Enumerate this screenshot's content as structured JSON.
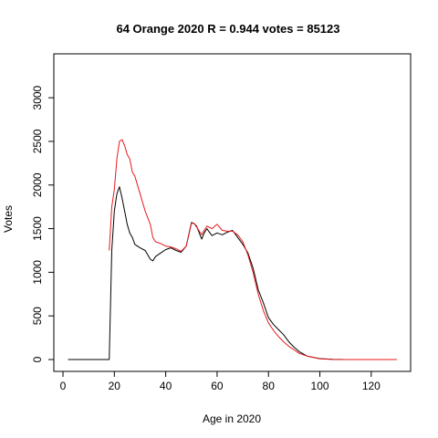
{
  "chart_data": {
    "type": "line",
    "title": "64 Orange 2020 R = 0.944 votes = 85123",
    "xlabel": "Age in 2020",
    "ylabel": "Votes",
    "xlim": [
      0,
      130
    ],
    "ylim": [
      0,
      3200
    ],
    "xticks": [
      0,
      20,
      40,
      60,
      80,
      100,
      120
    ],
    "yticks": [
      0,
      500,
      1000,
      1500,
      2000,
      2500,
      3000
    ],
    "grid": false,
    "series": [
      {
        "color": "#000000",
        "x": [
          2,
          18,
          19,
          20,
          21,
          22,
          23,
          24,
          25,
          26,
          27,
          28,
          30,
          32,
          34,
          35,
          36,
          38,
          40,
          42,
          44,
          46,
          48,
          50,
          51,
          52,
          54,
          55,
          56,
          58,
          60,
          62,
          64,
          66,
          68,
          70,
          72,
          74,
          76,
          78,
          80,
          82,
          84,
          86,
          88,
          90,
          92,
          95,
          100,
          105,
          110,
          130
        ],
        "y": [
          0,
          0,
          1250,
          1700,
          1900,
          1980,
          1850,
          1700,
          1550,
          1450,
          1400,
          1320,
          1280,
          1250,
          1150,
          1130,
          1180,
          1220,
          1260,
          1280,
          1250,
          1230,
          1300,
          1570,
          1560,
          1530,
          1380,
          1450,
          1500,
          1420,
          1450,
          1430,
          1460,
          1480,
          1400,
          1320,
          1220,
          1050,
          800,
          650,
          480,
          400,
          340,
          280,
          200,
          140,
          90,
          40,
          10,
          2,
          0,
          0
        ]
      },
      {
        "color": "#e8191d",
        "x": [
          18,
          19,
          20,
          21,
          22,
          23,
          24,
          25,
          26,
          27,
          28,
          30,
          32,
          34,
          35,
          36,
          38,
          40,
          42,
          44,
          46,
          48,
          50,
          51,
          52,
          54,
          55,
          56,
          58,
          60,
          62,
          64,
          66,
          68,
          70,
          72,
          74,
          76,
          78,
          80,
          82,
          84,
          86,
          88,
          90,
          92,
          95,
          100,
          105,
          110,
          130
        ],
        "y": [
          1250,
          1750,
          1950,
          2300,
          2500,
          2520,
          2450,
          2350,
          2300,
          2150,
          2100,
          1900,
          1700,
          1550,
          1400,
          1350,
          1330,
          1300,
          1290,
          1270,
          1240,
          1300,
          1560,
          1560,
          1520,
          1430,
          1480,
          1530,
          1500,
          1550,
          1480,
          1470,
          1470,
          1430,
          1350,
          1200,
          1000,
          750,
          560,
          420,
          330,
          260,
          200,
          150,
          110,
          70,
          40,
          8,
          1,
          0,
          0
        ]
      }
    ]
  }
}
